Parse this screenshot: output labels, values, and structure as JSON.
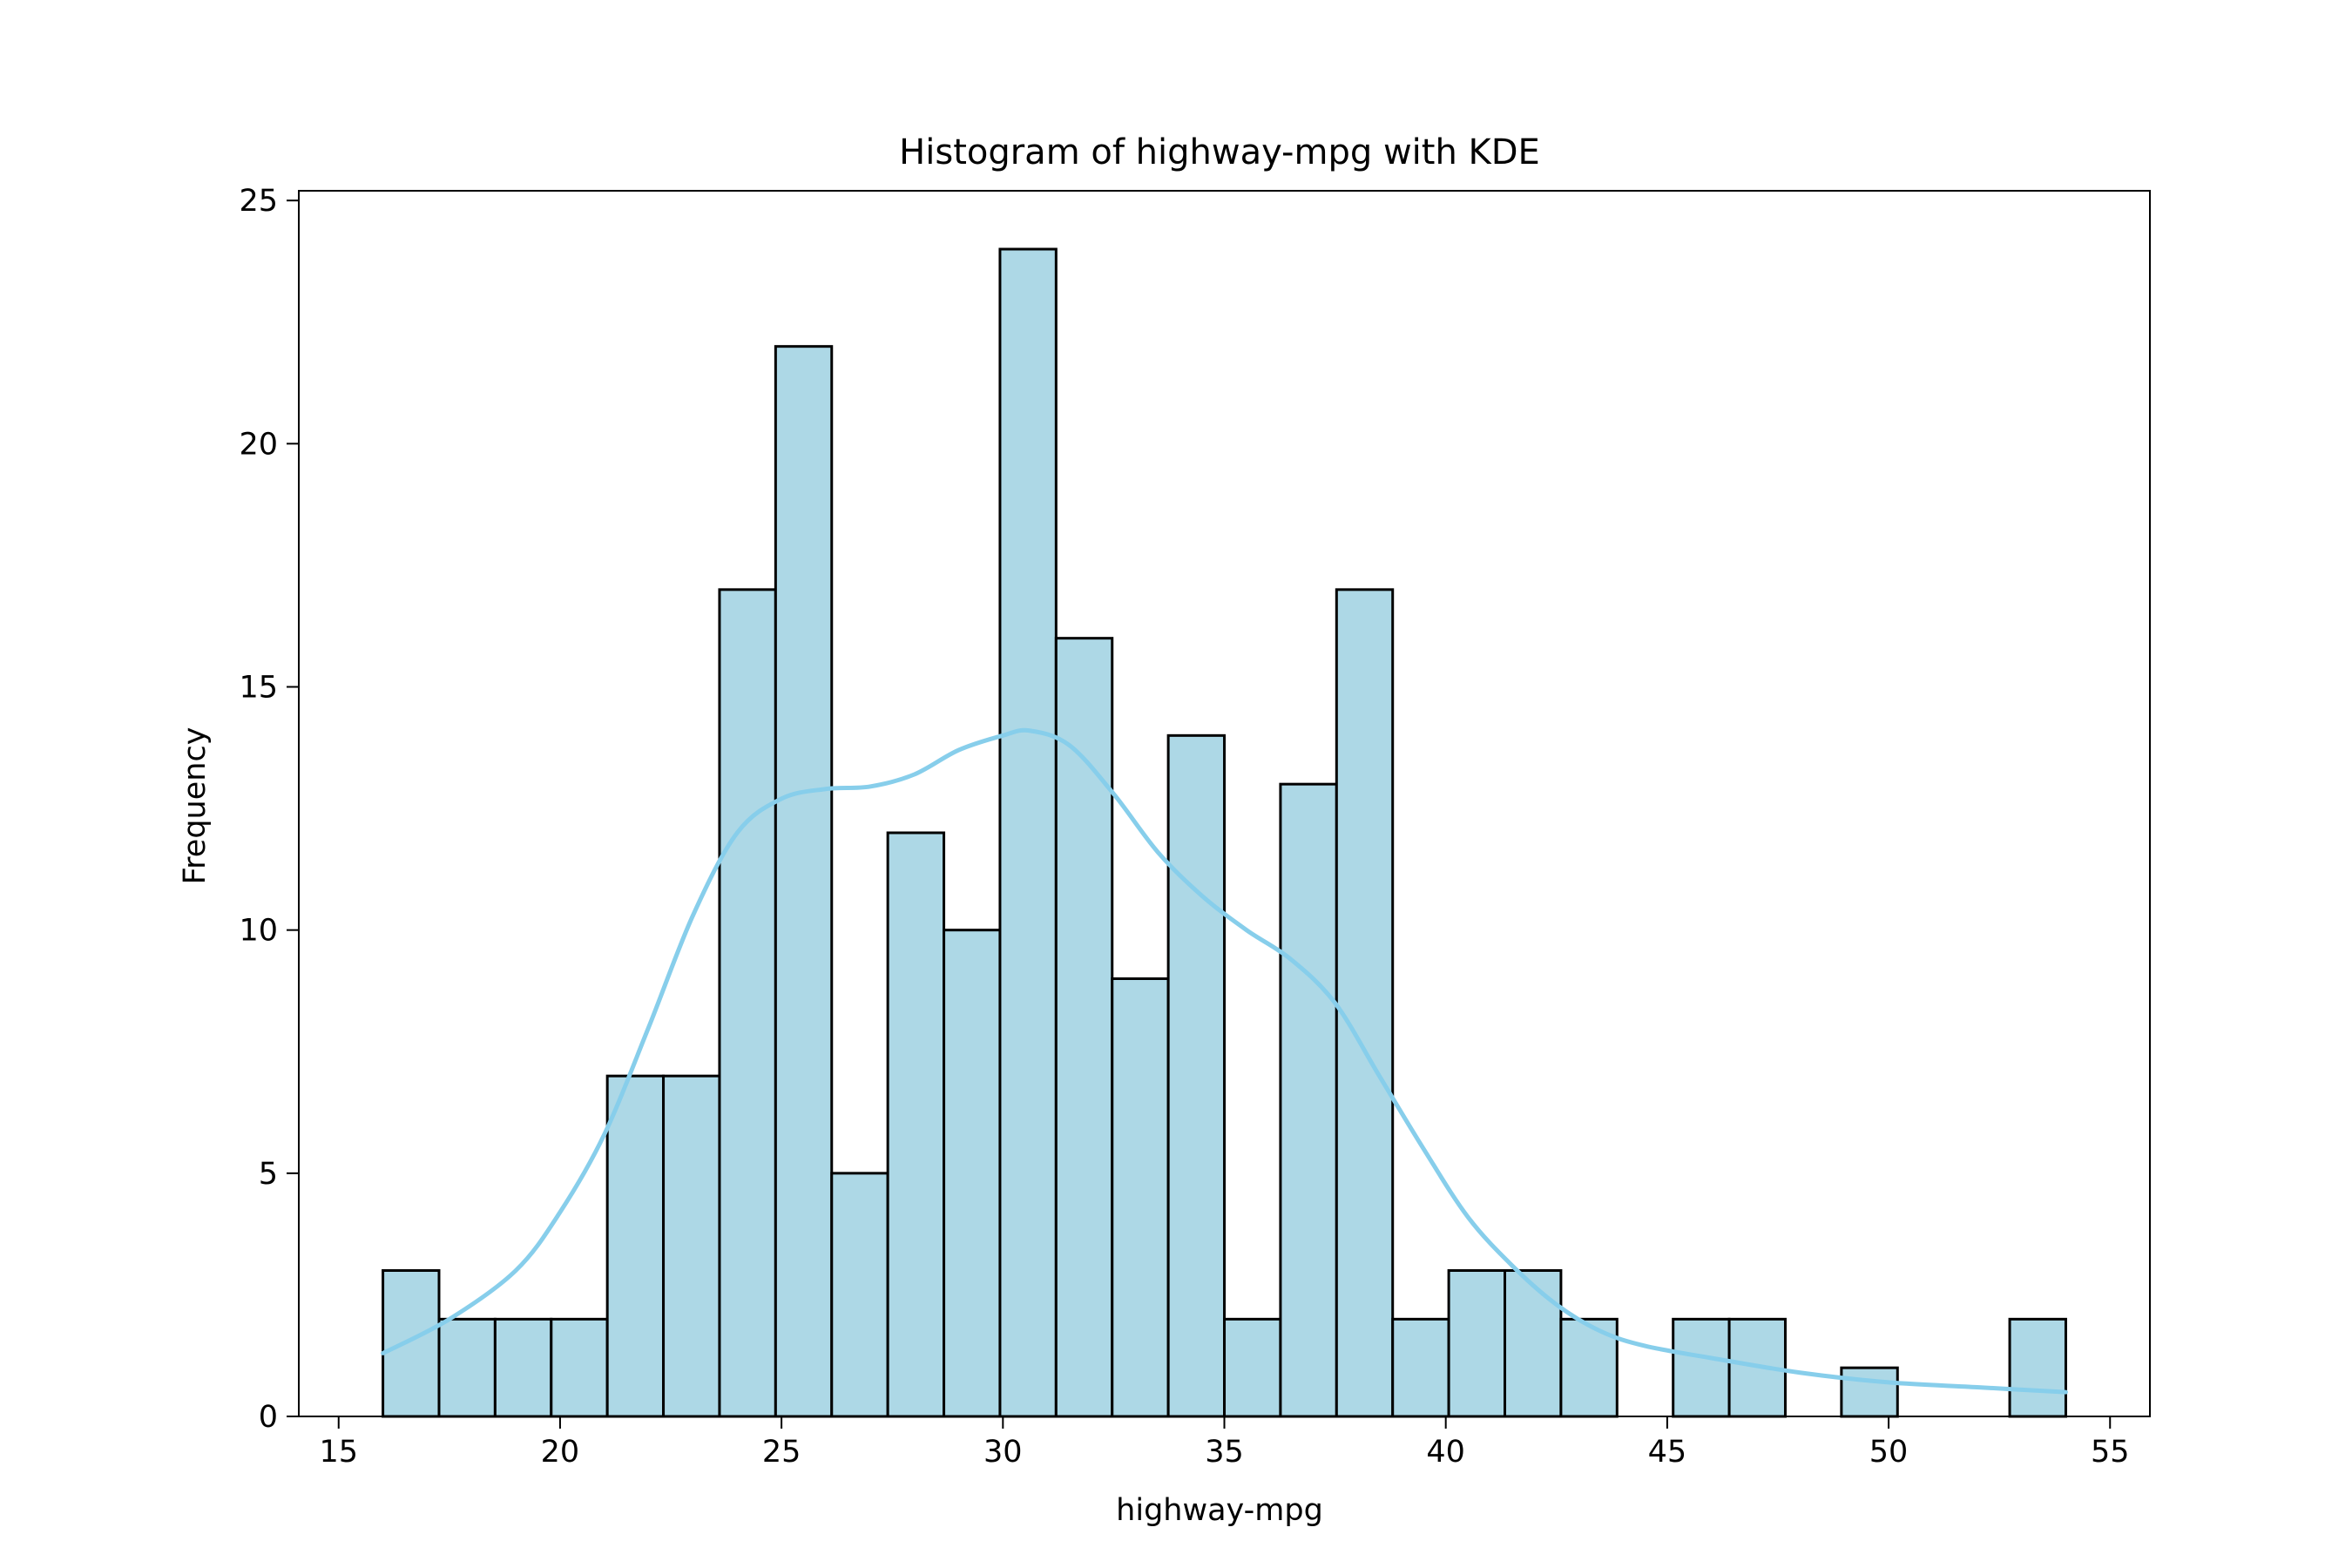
{
  "chart_data": {
    "type": "bar",
    "title": "Histogram of highway-mpg with KDE",
    "xlabel": "highway-mpg",
    "ylabel": "Frequency",
    "xlim": [
      14.1,
      55.9
    ],
    "ylim": [
      0,
      25.2
    ],
    "xticks": [
      15,
      20,
      25,
      30,
      35,
      40,
      45,
      50,
      55
    ],
    "yticks": [
      0,
      5,
      10,
      15,
      20,
      25
    ],
    "grid": false,
    "bins": {
      "start": 16,
      "width": 1.2667,
      "counts": [
        3,
        2,
        2,
        2,
        7,
        7,
        17,
        22,
        5,
        12,
        10,
        24,
        16,
        9,
        14,
        2,
        13,
        17,
        2,
        3,
        3,
        2,
        0,
        2,
        2,
        0,
        1,
        0,
        0,
        2
      ]
    },
    "kde": {
      "x": [
        16,
        17.5,
        19,
        20,
        21,
        22,
        23,
        24,
        25,
        26,
        27,
        28,
        29,
        30,
        30.6,
        31.5,
        32.5,
        33.5,
        34.5,
        35.5,
        36.5,
        37.5,
        38.5,
        39.5,
        40.5,
        41.5,
        42.5,
        43.5,
        44.5,
        46,
        48,
        50,
        52,
        54
      ],
      "y": [
        1.3,
        2.0,
        3.0,
        4.2,
        5.8,
        8.0,
        10.3,
        12.0,
        12.7,
        12.9,
        12.95,
        13.2,
        13.7,
        14.0,
        14.1,
        13.8,
        12.8,
        11.6,
        10.7,
        10.0,
        9.4,
        8.5,
        7.0,
        5.5,
        4.1,
        3.1,
        2.3,
        1.75,
        1.45,
        1.2,
        0.9,
        0.7,
        0.6,
        0.5
      ]
    },
    "colors": {
      "bar_fill": "#add8e6",
      "bar_edge": "#000000",
      "kde_line": "#87ceeb"
    }
  }
}
